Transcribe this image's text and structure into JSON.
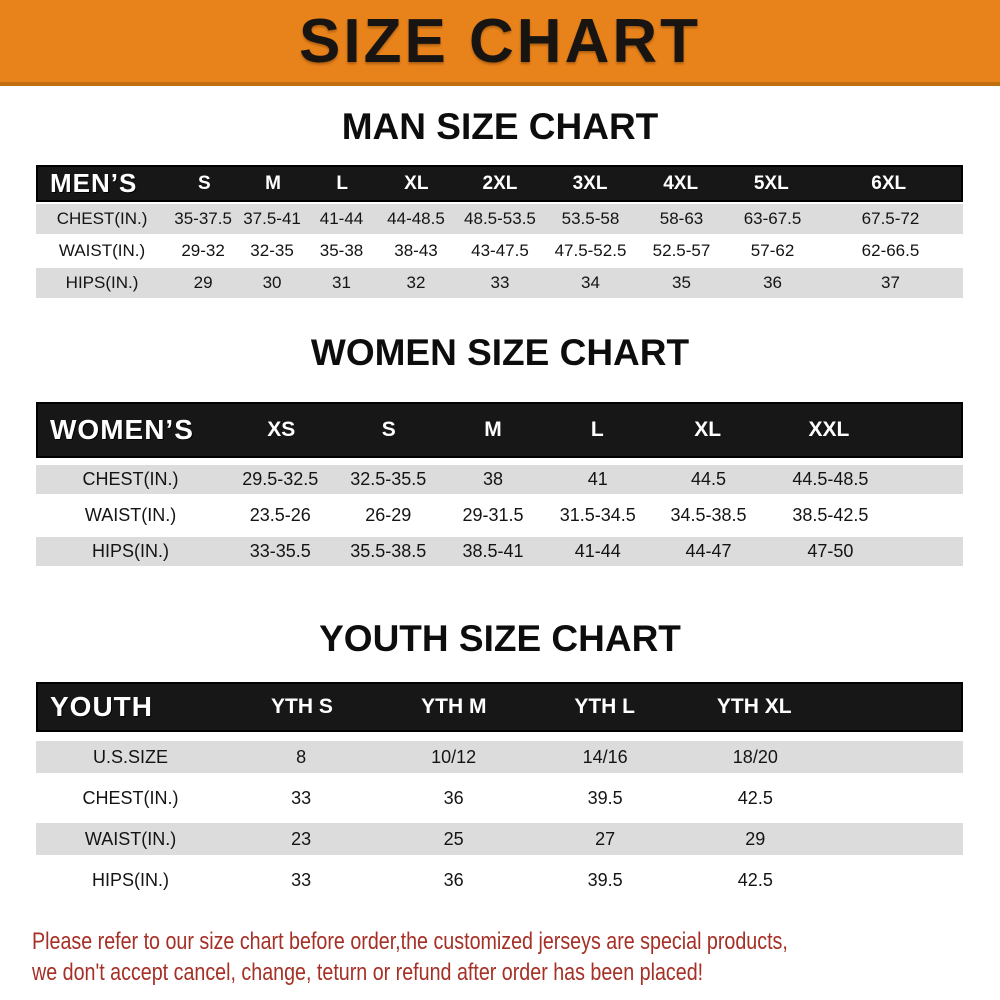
{
  "banner": {
    "title": "SIZE CHART"
  },
  "colors": {
    "banner_orange": "#E8821A",
    "banner_edge": "#C06E0E",
    "header_black": "#171717",
    "row_gray": "#DCDCDC",
    "row_white": "#FFFFFF",
    "footer_red": "#A63026"
  },
  "sections": [
    {
      "heading": "MAN SIZE CHART",
      "header_label": "MEN’S",
      "columns": [
        "S",
        "M",
        "L",
        "XL",
        "2XL",
        "3XL",
        "4XL",
        "5XL",
        "6XL"
      ],
      "rows": [
        {
          "label": "CHEST(IN.)",
          "values": [
            "35-37.5",
            "37.5-41",
            "41-44",
            "44-48.5",
            "48.5-53.5",
            "53.5-58",
            "58-63",
            "63-67.5",
            "67.5-72"
          ]
        },
        {
          "label": "WAIST(IN.)",
          "values": [
            "29-32",
            "32-35",
            "35-38",
            "38-43",
            "43-47.5",
            "47.5-52.5",
            "52.5-57",
            "57-62",
            "62-66.5"
          ]
        },
        {
          "label": "HIPS(IN.)",
          "values": [
            "29",
            "30",
            "31",
            "32",
            "33",
            "34",
            "35",
            "36",
            "37"
          ]
        }
      ]
    },
    {
      "heading": "WOMEN SIZE CHART",
      "header_label": "WOMEN’S",
      "columns": [
        "XS",
        "S",
        "M",
        "L",
        "XL",
        "XXL"
      ],
      "rows": [
        {
          "label": "CHEST(IN.)",
          "values": [
            "29.5-32.5",
            "32.5-35.5",
            "38",
            "41",
            "44.5",
            "44.5-48.5"
          ]
        },
        {
          "label": "WAIST(IN.)",
          "values": [
            "23.5-26",
            "26-29",
            "29-31.5",
            "31.5-34.5",
            "34.5-38.5",
            "38.5-42.5"
          ]
        },
        {
          "label": "HIPS(IN.)",
          "values": [
            "33-35.5",
            "35.5-38.5",
            "38.5-41",
            "41-44",
            "44-47",
            "47-50"
          ]
        }
      ]
    },
    {
      "heading": "YOUTH SIZE CHART",
      "header_label": "YOUTH",
      "columns": [
        "YTH S",
        "YTH M",
        "YTH L",
        "YTH XL"
      ],
      "rows": [
        {
          "label": "U.S.SIZE",
          "values": [
            "8",
            "10/12",
            "14/16",
            "18/20"
          ]
        },
        {
          "label": "CHEST(IN.)",
          "values": [
            "33",
            "36",
            "39.5",
            "42.5"
          ]
        },
        {
          "label": "WAIST(IN.)",
          "values": [
            "23",
            "25",
            "27",
            "29"
          ]
        },
        {
          "label": "HIPS(IN.)",
          "values": [
            "33",
            "36",
            "39.5",
            "42.5"
          ]
        }
      ]
    }
  ],
  "footer": {
    "line1": "Please refer to our size chart before order,the customized jerseys are special products,",
    "line2": "we don't accept cancel, change, teturn or refund after order has been placed!"
  }
}
